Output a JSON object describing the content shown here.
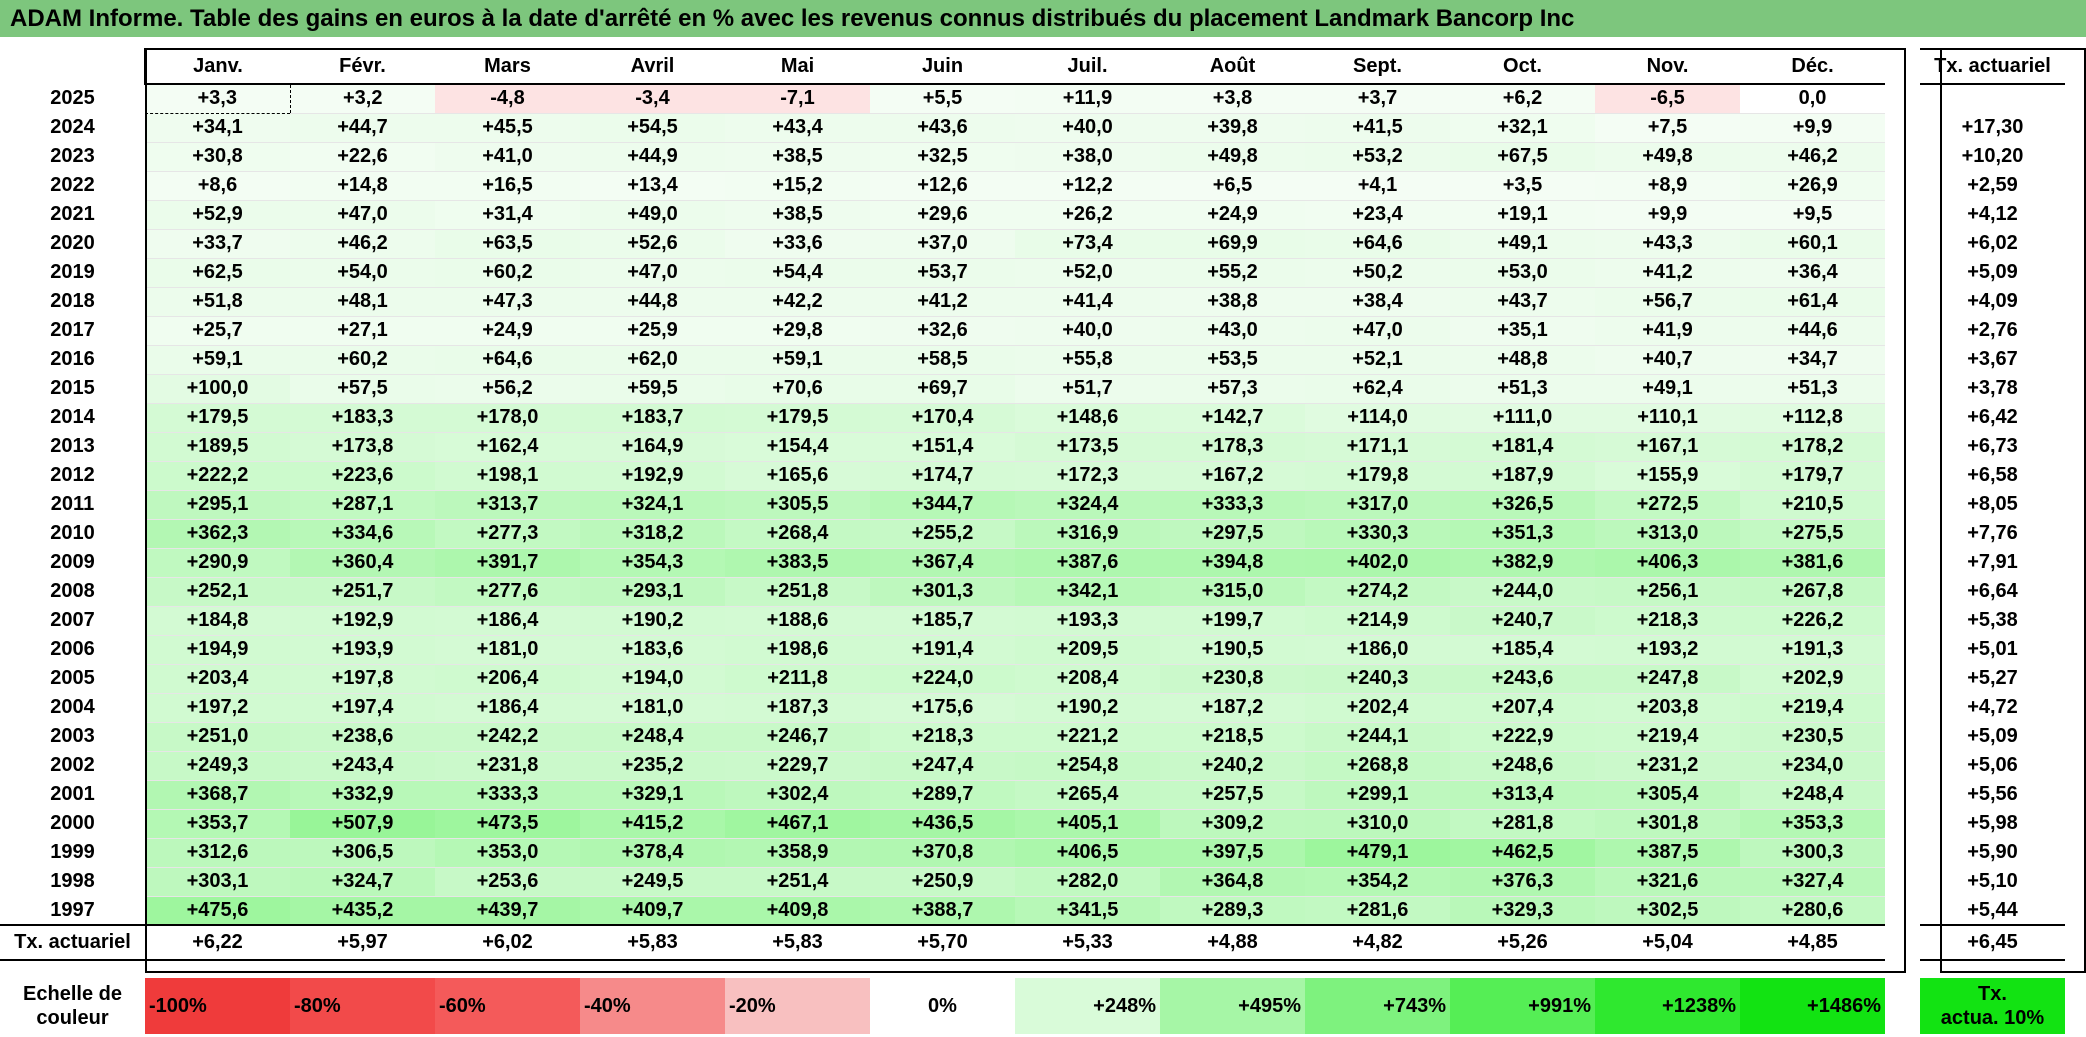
{
  "title": "ADAM Informe. Table des gains en euros à la date d'arrêté en % avec les revenus connus distribués du placement Landmark Bancorp Inc",
  "months": [
    "Janv.",
    "Févr.",
    "Mars",
    "Avril",
    "Mai",
    "Juin",
    "Juil.",
    "Août",
    "Sept.",
    "Oct.",
    "Nov.",
    "Déc."
  ],
  "act_header": "Tx. actuariel",
  "rows": [
    {
      "year": "2025",
      "values": [
        "+3,3",
        "+3,2",
        "-4,8",
        "-3,4",
        "-7,1",
        "+5,5",
        "+11,9",
        "+3,8",
        "+3,7",
        "+6,2",
        "-6,5",
        "0,0"
      ],
      "act": ""
    },
    {
      "year": "2024",
      "values": [
        "+34,1",
        "+44,7",
        "+45,5",
        "+54,5",
        "+43,4",
        "+43,6",
        "+40,0",
        "+39,8",
        "+41,5",
        "+32,1",
        "+7,5",
        "+9,9"
      ],
      "act": "+17,30"
    },
    {
      "year": "2023",
      "values": [
        "+30,8",
        "+22,6",
        "+41,0",
        "+44,9",
        "+38,5",
        "+32,5",
        "+38,0",
        "+49,8",
        "+53,2",
        "+67,5",
        "+49,8",
        "+46,2"
      ],
      "act": "+10,20"
    },
    {
      "year": "2022",
      "values": [
        "+8,6",
        "+14,8",
        "+16,5",
        "+13,4",
        "+15,2",
        "+12,6",
        "+12,2",
        "+6,5",
        "+4,1",
        "+3,5",
        "+8,9",
        "+26,9"
      ],
      "act": "+2,59"
    },
    {
      "year": "2021",
      "values": [
        "+52,9",
        "+47,0",
        "+31,4",
        "+49,0",
        "+38,5",
        "+29,6",
        "+26,2",
        "+24,9",
        "+23,4",
        "+19,1",
        "+9,9",
        "+9,5"
      ],
      "act": "+4,12"
    },
    {
      "year": "2020",
      "values": [
        "+33,7",
        "+46,2",
        "+63,5",
        "+52,6",
        "+33,6",
        "+37,0",
        "+73,4",
        "+69,9",
        "+64,6",
        "+49,1",
        "+43,3",
        "+60,1"
      ],
      "act": "+6,02"
    },
    {
      "year": "2019",
      "values": [
        "+62,5",
        "+54,0",
        "+60,2",
        "+47,0",
        "+54,4",
        "+53,7",
        "+52,0",
        "+55,2",
        "+50,2",
        "+53,0",
        "+41,2",
        "+36,4"
      ],
      "act": "+5,09"
    },
    {
      "year": "2018",
      "values": [
        "+51,8",
        "+48,1",
        "+47,3",
        "+44,8",
        "+42,2",
        "+41,2",
        "+41,4",
        "+38,8",
        "+38,4",
        "+43,7",
        "+56,7",
        "+61,4"
      ],
      "act": "+4,09"
    },
    {
      "year": "2017",
      "values": [
        "+25,7",
        "+27,1",
        "+24,9",
        "+25,9",
        "+29,8",
        "+32,6",
        "+40,0",
        "+43,0",
        "+47,0",
        "+35,1",
        "+41,9",
        "+44,6"
      ],
      "act": "+2,76"
    },
    {
      "year": "2016",
      "values": [
        "+59,1",
        "+60,2",
        "+64,6",
        "+62,0",
        "+59,1",
        "+58,5",
        "+55,8",
        "+53,5",
        "+52,1",
        "+48,8",
        "+40,7",
        "+34,7"
      ],
      "act": "+3,67"
    },
    {
      "year": "2015",
      "values": [
        "+100,0",
        "+57,5",
        "+56,2",
        "+59,5",
        "+70,6",
        "+69,7",
        "+51,7",
        "+57,3",
        "+62,4",
        "+51,3",
        "+49,1",
        "+51,3"
      ],
      "act": "+3,78"
    },
    {
      "year": "2014",
      "values": [
        "+179,5",
        "+183,3",
        "+178,0",
        "+183,7",
        "+179,5",
        "+170,4",
        "+148,6",
        "+142,7",
        "+114,0",
        "+111,0",
        "+110,1",
        "+112,8"
      ],
      "act": "+6,42"
    },
    {
      "year": "2013",
      "values": [
        "+189,5",
        "+173,8",
        "+162,4",
        "+164,9",
        "+154,4",
        "+151,4",
        "+173,5",
        "+178,3",
        "+171,1",
        "+181,4",
        "+167,1",
        "+178,2"
      ],
      "act": "+6,73"
    },
    {
      "year": "2012",
      "values": [
        "+222,2",
        "+223,6",
        "+198,1",
        "+192,9",
        "+165,6",
        "+174,7",
        "+172,3",
        "+167,2",
        "+179,8",
        "+187,9",
        "+155,9",
        "+179,7"
      ],
      "act": "+6,58"
    },
    {
      "year": "2011",
      "values": [
        "+295,1",
        "+287,1",
        "+313,7",
        "+324,1",
        "+305,5",
        "+344,7",
        "+324,4",
        "+333,3",
        "+317,0",
        "+326,5",
        "+272,5",
        "+210,5"
      ],
      "act": "+8,05"
    },
    {
      "year": "2010",
      "values": [
        "+362,3",
        "+334,6",
        "+277,3",
        "+318,2",
        "+268,4",
        "+255,2",
        "+316,9",
        "+297,5",
        "+330,3",
        "+351,3",
        "+313,0",
        "+275,5"
      ],
      "act": "+7,76"
    },
    {
      "year": "2009",
      "values": [
        "+290,9",
        "+360,4",
        "+391,7",
        "+354,3",
        "+383,5",
        "+367,4",
        "+387,6",
        "+394,8",
        "+402,0",
        "+382,9",
        "+406,3",
        "+381,6"
      ],
      "act": "+7,91"
    },
    {
      "year": "2008",
      "values": [
        "+252,1",
        "+251,7",
        "+277,6",
        "+293,1",
        "+251,8",
        "+301,3",
        "+342,1",
        "+315,0",
        "+274,2",
        "+244,0",
        "+256,1",
        "+267,8"
      ],
      "act": "+6,64"
    },
    {
      "year": "2007",
      "values": [
        "+184,8",
        "+192,9",
        "+186,4",
        "+190,2",
        "+188,6",
        "+185,7",
        "+193,3",
        "+199,7",
        "+214,9",
        "+240,7",
        "+218,3",
        "+226,2"
      ],
      "act": "+5,38"
    },
    {
      "year": "2006",
      "values": [
        "+194,9",
        "+193,9",
        "+181,0",
        "+183,6",
        "+198,6",
        "+191,4",
        "+209,5",
        "+190,5",
        "+186,0",
        "+185,4",
        "+193,2",
        "+191,3"
      ],
      "act": "+5,01"
    },
    {
      "year": "2005",
      "values": [
        "+203,4",
        "+197,8",
        "+206,4",
        "+194,0",
        "+211,8",
        "+224,0",
        "+208,4",
        "+230,8",
        "+240,3",
        "+243,6",
        "+247,8",
        "+202,9"
      ],
      "act": "+5,27"
    },
    {
      "year": "2004",
      "values": [
        "+197,2",
        "+197,4",
        "+186,4",
        "+181,0",
        "+187,3",
        "+175,6",
        "+190,2",
        "+187,2",
        "+202,4",
        "+207,4",
        "+203,8",
        "+219,4"
      ],
      "act": "+4,72"
    },
    {
      "year": "2003",
      "values": [
        "+251,0",
        "+238,6",
        "+242,2",
        "+248,4",
        "+246,7",
        "+218,3",
        "+221,2",
        "+218,5",
        "+244,1",
        "+222,9",
        "+219,4",
        "+230,5"
      ],
      "act": "+5,09"
    },
    {
      "year": "2002",
      "values": [
        "+249,3",
        "+243,4",
        "+231,8",
        "+235,2",
        "+229,7",
        "+247,4",
        "+254,8",
        "+240,2",
        "+268,8",
        "+248,6",
        "+231,2",
        "+234,0"
      ],
      "act": "+5,06"
    },
    {
      "year": "2001",
      "values": [
        "+368,7",
        "+332,9",
        "+333,3",
        "+329,1",
        "+302,4",
        "+289,7",
        "+265,4",
        "+257,5",
        "+299,1",
        "+313,4",
        "+305,4",
        "+248,4"
      ],
      "act": "+5,56"
    },
    {
      "year": "2000",
      "values": [
        "+353,7",
        "+507,9",
        "+473,5",
        "+415,2",
        "+467,1",
        "+436,5",
        "+405,1",
        "+309,2",
        "+310,0",
        "+281,8",
        "+301,8",
        "+353,3"
      ],
      "act": "+5,98"
    },
    {
      "year": "1999",
      "values": [
        "+312,6",
        "+306,5",
        "+353,0",
        "+378,4",
        "+358,9",
        "+370,8",
        "+406,5",
        "+397,5",
        "+479,1",
        "+462,5",
        "+387,5",
        "+300,3"
      ],
      "act": "+5,90"
    },
    {
      "year": "1998",
      "values": [
        "+303,1",
        "+324,7",
        "+253,6",
        "+249,5",
        "+251,4",
        "+250,9",
        "+282,0",
        "+364,8",
        "+354,2",
        "+376,3",
        "+321,6",
        "+327,4"
      ],
      "act": "+5,10"
    },
    {
      "year": "1997",
      "values": [
        "+475,6",
        "+435,2",
        "+439,7",
        "+409,7",
        "+409,8",
        "+388,7",
        "+341,5",
        "+289,3",
        "+281,6",
        "+329,3",
        "+302,5",
        "+280,6"
      ],
      "act": "+5,44"
    }
  ],
  "total_row": {
    "label": "Tx. actuariel",
    "values": [
      "+6,22",
      "+5,97",
      "+6,02",
      "+5,83",
      "+5,83",
      "+5,70",
      "+5,33",
      "+4,88",
      "+4,82",
      "+5,26",
      "+5,04",
      "+4,85"
    ],
    "act": "+6,45"
  },
  "legend": {
    "label_line1": "Echelle de",
    "label_line2": "couleur",
    "items": [
      {
        "text": "-100%",
        "color": "#ef3b3b"
      },
      {
        "text": "-80%",
        "color": "#f24a4a"
      },
      {
        "text": "-60%",
        "color": "#f45a5a"
      },
      {
        "text": "-40%",
        "color": "#f68a8a"
      },
      {
        "text": "-20%",
        "color": "#f8c0c0"
      },
      {
        "text": "0%",
        "color": "#ffffff"
      },
      {
        "text": "+248%",
        "color": "#d9fbd9"
      },
      {
        "text": "+495%",
        "color": "#a6f6a6"
      },
      {
        "text": "+743%",
        "color": "#7ef27e"
      },
      {
        "text": "+991%",
        "color": "#55ee55"
      },
      {
        "text": "+1238%",
        "color": "#2fe82f"
      },
      {
        "text": "+1486%",
        "color": "#12e312"
      }
    ],
    "act_line1": "Tx.",
    "act_line2": "actua. 10%",
    "act_color": "#12e312"
  },
  "colors": {
    "title_bg": "#7dc67d",
    "negative_light": "#fde6e6",
    "positive_scale_max": "#9df59d"
  }
}
